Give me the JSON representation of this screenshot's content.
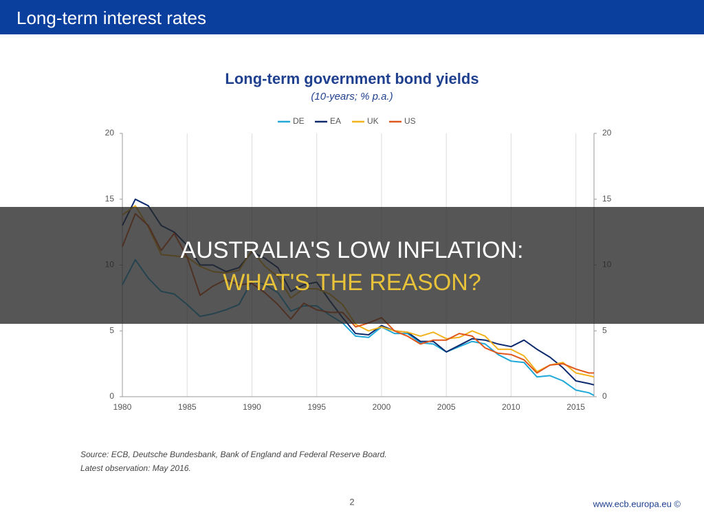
{
  "header": {
    "title": "Long-term interest rates"
  },
  "chart_data": {
    "type": "line",
    "title": "Long-term government bond yields",
    "subtitle": "(10-years; % p.a.)",
    "x": [
      1980,
      1981,
      1982,
      1983,
      1984,
      1985,
      1986,
      1987,
      1988,
      1989,
      1990,
      1991,
      1992,
      1993,
      1994,
      1995,
      1996,
      1997,
      1998,
      1999,
      2000,
      2001,
      2002,
      2003,
      2004,
      2005,
      2006,
      2007,
      2008,
      2009,
      2010,
      2011,
      2012,
      2013,
      2014,
      2015,
      2016,
      2016.4
    ],
    "series": [
      {
        "name": "DE",
        "color": "#1fa8d8",
        "values": [
          8.5,
          10.4,
          9.0,
          8.0,
          7.8,
          7.0,
          6.1,
          6.3,
          6.6,
          7.0,
          8.8,
          8.5,
          7.9,
          6.5,
          6.9,
          6.9,
          6.2,
          5.6,
          4.6,
          4.5,
          5.3,
          4.8,
          4.8,
          4.1,
          4.0,
          3.4,
          3.8,
          4.2,
          4.0,
          3.2,
          2.7,
          2.6,
          1.5,
          1.6,
          1.2,
          0.5,
          0.3,
          0.1
        ]
      },
      {
        "name": "EA",
        "color": "#0d2a6e",
        "values": [
          13.0,
          15.0,
          14.5,
          13.0,
          12.5,
          11.5,
          10.0,
          10.0,
          9.5,
          9.8,
          11.0,
          10.5,
          9.8,
          8.0,
          8.5,
          8.7,
          7.3,
          6.0,
          4.8,
          4.7,
          5.4,
          5.0,
          4.9,
          4.2,
          4.2,
          3.4,
          3.9,
          4.4,
          4.3,
          4.0,
          3.8,
          4.3,
          3.6,
          3.0,
          2.2,
          1.2,
          1.0,
          0.9
        ]
      },
      {
        "name": "UK",
        "color": "#f2b21c",
        "values": [
          13.8,
          14.5,
          12.9,
          10.8,
          10.7,
          10.6,
          9.9,
          9.5,
          9.4,
          9.6,
          11.1,
          9.9,
          9.1,
          7.5,
          8.2,
          8.2,
          7.8,
          7.0,
          5.5,
          5.0,
          5.3,
          5.0,
          4.9,
          4.6,
          4.9,
          4.4,
          4.5,
          5.0,
          4.6,
          3.6,
          3.6,
          3.1,
          1.9,
          2.4,
          2.6,
          1.8,
          1.6,
          1.5
        ]
      },
      {
        "name": "US",
        "color": "#e0571c",
        "values": [
          11.4,
          13.9,
          13.0,
          11.1,
          12.4,
          10.6,
          7.7,
          8.4,
          8.9,
          8.5,
          8.6,
          7.9,
          7.0,
          5.9,
          7.1,
          6.6,
          6.4,
          6.4,
          5.3,
          5.6,
          6.0,
          5.0,
          4.6,
          4.0,
          4.3,
          4.3,
          4.8,
          4.6,
          3.7,
          3.3,
          3.2,
          2.8,
          1.8,
          2.4,
          2.5,
          2.1,
          1.8,
          1.8
        ]
      }
    ],
    "xlim": [
      1980,
      2016.4
    ],
    "xticks": [
      1980,
      1985,
      1990,
      1995,
      2000,
      2005,
      2010,
      2015
    ],
    "ylim": [
      0,
      20
    ],
    "yticks": [
      0,
      5,
      10,
      15,
      20
    ],
    "y2lim": [
      0,
      20
    ],
    "y2ticks": [
      0,
      5,
      10,
      15,
      20
    ],
    "grid": "x",
    "legend": "top"
  },
  "notes": {
    "source": "Source: ECB, Deutsche Bundesbank, Bank of England and Federal Reserve Board.",
    "latest": "Latest observation: May 2016."
  },
  "overlay": {
    "line1": "AUSTRALIA'S LOW INFLATION:",
    "line2": "WHAT'S THE REASON?"
  },
  "footer": {
    "page": "2",
    "url": "www.ecb.europa.eu ©"
  }
}
